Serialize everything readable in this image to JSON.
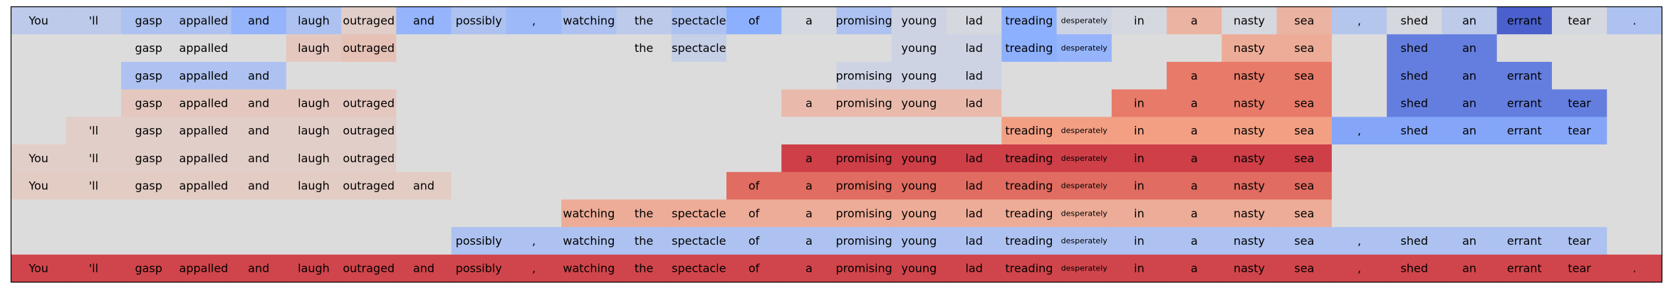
{
  "chart_data": {
    "type": "heatmap",
    "title": "",
    "xlabel": "",
    "ylabel": "",
    "tokens": [
      "You",
      "'ll",
      "gasp",
      "appalled",
      "and",
      "laugh",
      "outraged",
      "and",
      "possibly",
      ",",
      "watching",
      "the",
      "spectacle",
      "of",
      "a",
      "promising",
      "young",
      "lad",
      "treading",
      "desperately",
      "in",
      "a",
      "nasty",
      "sea",
      ",",
      "shed",
      "an",
      "errant",
      "tear",
      "."
    ],
    "value_range": [
      -1,
      1
    ],
    "colormap": "coolwarm",
    "rows": [
      {
        "values": [
          -0.2,
          -0.2,
          -0.3,
          -0.3,
          -0.45,
          -0.3,
          0.1,
          -0.45,
          -0.3,
          -0.4,
          -0.3,
          -0.2,
          -0.3,
          -0.5,
          -0.05,
          -0.3,
          -0.1,
          -0.05,
          -0.5,
          -0.1,
          -0.05,
          0.3,
          -0.05,
          0.3,
          -0.25,
          -0.05,
          -0.2,
          -0.9,
          -0.05,
          -0.3
        ],
        "shown": [
          true,
          true,
          true,
          true,
          true,
          true,
          true,
          true,
          true,
          true,
          true,
          true,
          true,
          true,
          true,
          true,
          true,
          true,
          true,
          true,
          true,
          true,
          true,
          true,
          true,
          true,
          true,
          true,
          true,
          true
        ]
      },
      {
        "values": [
          0,
          0,
          0.0,
          0.0,
          0,
          0.15,
          0.2,
          0,
          0,
          0,
          0,
          0.0,
          -0.15,
          0,
          0,
          0,
          -0.1,
          -0.1,
          -0.5,
          -0.45,
          0,
          0,
          0.35,
          0.35,
          0,
          -0.75,
          -0.75,
          0,
          0,
          0
        ],
        "shown": [
          false,
          false,
          true,
          true,
          false,
          true,
          true,
          false,
          false,
          false,
          false,
          true,
          true,
          false,
          false,
          false,
          true,
          true,
          true,
          true,
          false,
          false,
          true,
          true,
          false,
          true,
          true,
          false,
          false,
          false
        ]
      },
      {
        "values": [
          0,
          0,
          -0.3,
          -0.3,
          -0.3,
          0,
          0,
          0,
          0,
          0,
          0,
          0,
          0,
          0,
          0,
          -0.1,
          -0.1,
          -0.1,
          0,
          0,
          0,
          0.6,
          0.6,
          0.6,
          0,
          -0.75,
          -0.75,
          -0.75,
          0,
          0
        ],
        "shown": [
          false,
          false,
          true,
          true,
          true,
          false,
          false,
          false,
          false,
          false,
          false,
          false,
          false,
          false,
          false,
          true,
          true,
          true,
          false,
          false,
          false,
          true,
          true,
          true,
          false,
          true,
          true,
          true,
          false,
          false
        ]
      },
      {
        "values": [
          0,
          0,
          0.15,
          0.15,
          0.15,
          0.15,
          0.15,
          0,
          0,
          0,
          0,
          0,
          0,
          0,
          0.25,
          0.25,
          0.25,
          0.25,
          0,
          0,
          0.6,
          0.6,
          0.6,
          0.6,
          0,
          -0.75,
          -0.75,
          -0.75,
          -0.75,
          0
        ],
        "shown": [
          false,
          false,
          true,
          true,
          true,
          true,
          true,
          false,
          false,
          false,
          false,
          false,
          false,
          false,
          true,
          true,
          true,
          true,
          false,
          false,
          true,
          true,
          true,
          true,
          false,
          true,
          true,
          true,
          true,
          false
        ]
      },
      {
        "values": [
          0,
          0.1,
          0.1,
          0.1,
          0.1,
          0.1,
          0.1,
          0,
          0,
          0,
          0,
          0,
          0,
          0,
          0,
          0,
          0,
          0,
          0.45,
          0.45,
          0.45,
          0.45,
          0.45,
          0.45,
          -0.55,
          -0.55,
          -0.55,
          -0.55,
          -0.55,
          0
        ],
        "shown": [
          false,
          true,
          true,
          true,
          true,
          true,
          true,
          false,
          false,
          false,
          false,
          false,
          false,
          false,
          false,
          false,
          false,
          false,
          true,
          true,
          true,
          true,
          true,
          true,
          true,
          true,
          true,
          true,
          true,
          false
        ]
      },
      {
        "values": [
          0.1,
          0.1,
          0.1,
          0.1,
          0.1,
          0.1,
          0.1,
          0,
          0,
          0,
          0,
          0,
          0,
          0,
          0.8,
          0.8,
          0.8,
          0.8,
          0.8,
          0.8,
          0.8,
          0.8,
          0.8,
          0.8,
          0,
          0,
          0,
          0,
          0,
          0
        ],
        "shown": [
          true,
          true,
          true,
          true,
          true,
          true,
          true,
          false,
          false,
          false,
          false,
          false,
          false,
          false,
          true,
          true,
          true,
          true,
          true,
          true,
          true,
          true,
          true,
          true,
          false,
          false,
          false,
          false,
          false,
          false
        ]
      },
      {
        "values": [
          0.12,
          0.12,
          0.12,
          0.12,
          0.12,
          0.12,
          0.12,
          0.12,
          0,
          0,
          0,
          0,
          0,
          0.65,
          0.65,
          0.65,
          0.65,
          0.65,
          0.65,
          0.65,
          0.65,
          0.65,
          0.65,
          0.65,
          0,
          0,
          0,
          0,
          0,
          0
        ],
        "shown": [
          true,
          true,
          true,
          true,
          true,
          true,
          true,
          true,
          false,
          false,
          false,
          false,
          false,
          true,
          true,
          true,
          true,
          true,
          true,
          true,
          true,
          true,
          true,
          true,
          false,
          false,
          false,
          false,
          false,
          false
        ]
      },
      {
        "values": [
          0,
          0,
          0,
          0,
          0,
          0,
          0,
          0,
          0,
          0,
          0.35,
          0.35,
          0.35,
          0.35,
          0.35,
          0.35,
          0.35,
          0.35,
          0.35,
          0.35,
          0.35,
          0.35,
          0.35,
          0.35,
          0,
          0,
          0,
          0,
          0,
          0
        ],
        "shown": [
          false,
          false,
          false,
          false,
          false,
          false,
          false,
          false,
          false,
          false,
          true,
          true,
          true,
          true,
          true,
          true,
          true,
          true,
          true,
          true,
          true,
          true,
          true,
          true,
          false,
          false,
          false,
          false,
          false,
          false
        ]
      },
      {
        "values": [
          0,
          0,
          0,
          0,
          0,
          0,
          0,
          0,
          -0.3,
          -0.3,
          -0.3,
          -0.3,
          -0.3,
          -0.3,
          -0.3,
          -0.3,
          -0.3,
          -0.3,
          -0.3,
          -0.3,
          -0.3,
          -0.3,
          -0.3,
          -0.3,
          -0.3,
          -0.3,
          -0.3,
          -0.3,
          -0.3,
          0
        ],
        "shown": [
          false,
          false,
          false,
          false,
          false,
          false,
          false,
          false,
          true,
          true,
          true,
          true,
          true,
          true,
          true,
          true,
          true,
          true,
          true,
          true,
          true,
          true,
          true,
          true,
          true,
          true,
          true,
          true,
          true,
          false
        ]
      },
      {
        "values": [
          0.78,
          0.78,
          0.78,
          0.78,
          0.78,
          0.78,
          0.78,
          0.78,
          0.78,
          0.78,
          0.78,
          0.78,
          0.78,
          0.78,
          0.78,
          0.78,
          0.78,
          0.78,
          0.78,
          0.78,
          0.78,
          0.78,
          0.78,
          0.78,
          0.78,
          0.78,
          0.78,
          0.78,
          0.78,
          0.78
        ],
        "shown": [
          true,
          true,
          true,
          true,
          true,
          true,
          true,
          true,
          true,
          true,
          true,
          true,
          true,
          true,
          true,
          true,
          true,
          true,
          true,
          true,
          true,
          true,
          true,
          true,
          true,
          true,
          true,
          true,
          true,
          true
        ]
      }
    ],
    "small_label_tokens": [
      "desperately"
    ],
    "grid": false,
    "legend": "none"
  },
  "colors": {
    "empty_cell": "#dddcdc",
    "frame": "#000000",
    "text": "#000000"
  }
}
